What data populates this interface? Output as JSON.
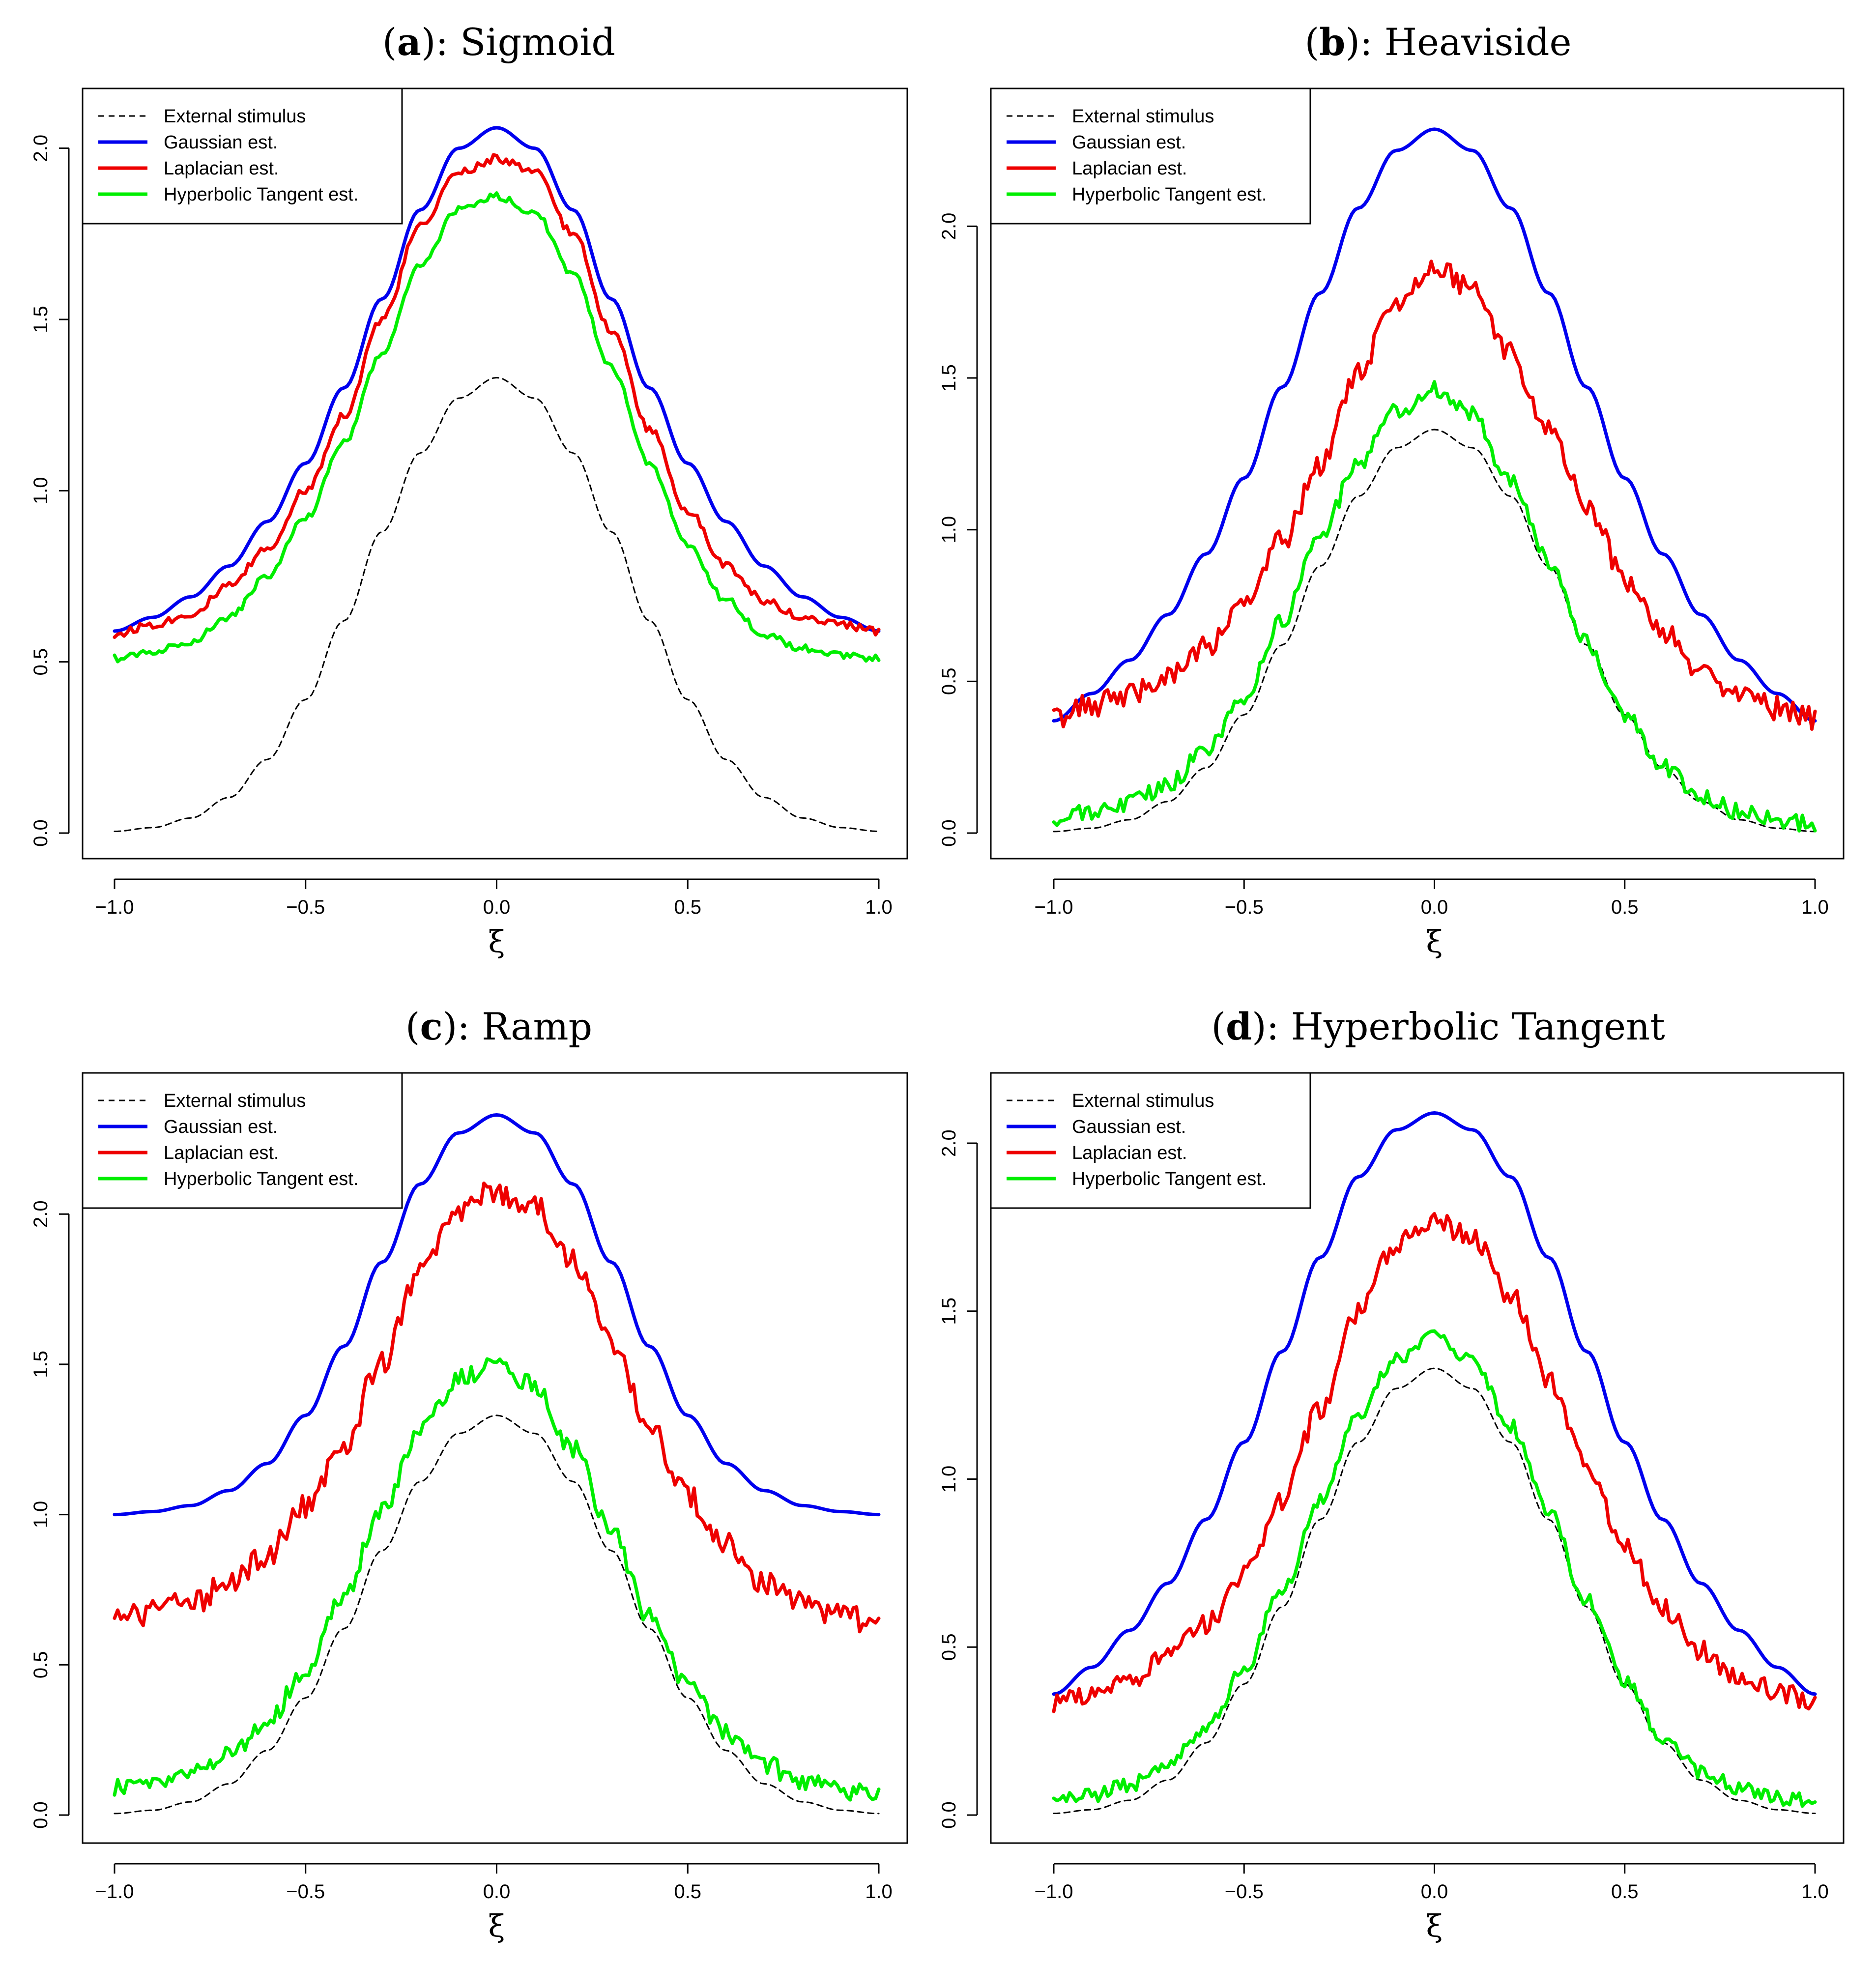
{
  "chart_data": [
    {
      "type": "line",
      "title": "Sigmoid",
      "label": "a",
      "xlabel": "ξ",
      "ylabel": "",
      "xlim": [
        -1.0,
        1.0
      ],
      "ylim": [
        0.0,
        2.1
      ],
      "xticks": [
        "-1.0",
        "-0.5",
        "0.0",
        "0.5",
        "1.0"
      ],
      "yticks": [
        "0.0",
        "0.5",
        "1.0",
        "1.5",
        "2.0"
      ],
      "legend": [
        "External stimulus",
        "Gaussian est.",
        "Laplacian est.",
        "Hyperbolic Tangent est."
      ],
      "legend_position": "top-left",
      "x": [
        -1.0,
        -0.9,
        -0.8,
        -0.7,
        -0.6,
        -0.5,
        -0.4,
        -0.3,
        -0.2,
        -0.1,
        0.0,
        0.1,
        0.2,
        0.3,
        0.4,
        0.5,
        0.6,
        0.7,
        0.8,
        0.9,
        1.0
      ],
      "series": [
        {
          "name": "External stimulus",
          "color": "#000000",
          "dash": true,
          "values": [
            0.005,
            0.016,
            0.044,
            0.104,
            0.215,
            0.39,
            0.62,
            0.88,
            1.11,
            1.27,
            1.33,
            1.27,
            1.11,
            0.88,
            0.62,
            0.39,
            0.215,
            0.104,
            0.044,
            0.016,
            0.005
          ]
        },
        {
          "name": "Gaussian est.",
          "color": "#0000ee",
          "values": [
            0.59,
            0.63,
            0.69,
            0.78,
            0.91,
            1.08,
            1.3,
            1.56,
            1.82,
            2.0,
            2.06,
            2.0,
            1.82,
            1.56,
            1.3,
            1.08,
            0.91,
            0.78,
            0.69,
            0.63,
            0.59
          ]
        },
        {
          "name": "Laplacian est.",
          "color": "#ee0000",
          "values": [
            0.58,
            0.61,
            0.64,
            0.72,
            0.83,
            1.0,
            1.22,
            1.5,
            1.77,
            1.93,
            1.97,
            1.93,
            1.75,
            1.47,
            1.18,
            0.94,
            0.78,
            0.68,
            0.63,
            0.61,
            0.59
          ]
        },
        {
          "name": "Hyperbolic Tangent est.",
          "color": "#00ee00",
          "values": [
            0.51,
            0.53,
            0.56,
            0.63,
            0.75,
            0.92,
            1.14,
            1.4,
            1.66,
            1.82,
            1.86,
            1.81,
            1.63,
            1.36,
            1.08,
            0.84,
            0.68,
            0.58,
            0.54,
            0.52,
            0.51
          ]
        }
      ]
    },
    {
      "type": "line",
      "title": "Heaviside",
      "label": "b",
      "xlabel": "ξ",
      "ylabel": "",
      "xlim": [
        -1.0,
        1.0
      ],
      "ylim": [
        0.0,
        2.37
      ],
      "xticks": [
        "-1.0",
        "-0.5",
        "0.0",
        "0.5",
        "1.0"
      ],
      "yticks": [
        "0.0",
        "0.5",
        "1.0",
        "1.5",
        "2.0"
      ],
      "legend": [
        "External stimulus",
        "Gaussian est.",
        "Laplacian est.",
        "Hyperbolic Tangent est."
      ],
      "legend_position": "top-left",
      "x": [
        -1.0,
        -0.9,
        -0.8,
        -0.7,
        -0.6,
        -0.5,
        -0.4,
        -0.3,
        -0.2,
        -0.1,
        0.0,
        0.1,
        0.2,
        0.3,
        0.4,
        0.5,
        0.6,
        0.7,
        0.8,
        0.9,
        1.0
      ],
      "series": [
        {
          "name": "External stimulus",
          "color": "#000000",
          "dash": true,
          "values": [
            0.005,
            0.016,
            0.044,
            0.104,
            0.215,
            0.39,
            0.62,
            0.88,
            1.11,
            1.27,
            1.33,
            1.27,
            1.11,
            0.88,
            0.62,
            0.39,
            0.215,
            0.104,
            0.044,
            0.016,
            0.005
          ]
        },
        {
          "name": "Gaussian est.",
          "color": "#0000ee",
          "values": [
            0.37,
            0.46,
            0.57,
            0.72,
            0.92,
            1.17,
            1.47,
            1.78,
            2.06,
            2.25,
            2.32,
            2.25,
            2.06,
            1.78,
            1.47,
            1.17,
            0.92,
            0.72,
            0.57,
            0.46,
            0.37
          ]
        },
        {
          "name": "Laplacian est.",
          "color": "#ee0000",
          "values": [
            0.38,
            0.42,
            0.46,
            0.52,
            0.61,
            0.75,
            0.96,
            1.22,
            1.52,
            1.76,
            1.86,
            1.8,
            1.58,
            1.33,
            1.08,
            0.84,
            0.66,
            0.53,
            0.46,
            0.41,
            0.38
          ]
        },
        {
          "name": "Hyperbolic Tangent est.",
          "color": "#00ee00",
          "values": [
            0.04,
            0.07,
            0.1,
            0.16,
            0.27,
            0.45,
            0.7,
            0.98,
            1.22,
            1.39,
            1.46,
            1.38,
            1.16,
            0.9,
            0.63,
            0.39,
            0.22,
            0.12,
            0.07,
            0.04,
            0.03
          ]
        }
      ]
    },
    {
      "type": "line",
      "title": "Ramp",
      "label": "c",
      "xlabel": "ξ",
      "ylabel": "",
      "xlim": [
        -1.0,
        1.0
      ],
      "ylim": [
        0.0,
        2.37
      ],
      "xticks": [
        "-1.0",
        "-0.5",
        "0.0",
        "0.5",
        "1.0"
      ],
      "yticks": [
        "0.0",
        "0.5",
        "1.0",
        "1.5",
        "2.0"
      ],
      "legend": [
        "External stimulus",
        "Gaussian est.",
        "Laplacian est.",
        "Hyperbolic Tangent est."
      ],
      "legend_position": "top-left",
      "x": [
        -1.0,
        -0.9,
        -0.8,
        -0.7,
        -0.6,
        -0.5,
        -0.4,
        -0.3,
        -0.2,
        -0.1,
        0.0,
        0.1,
        0.2,
        0.3,
        0.4,
        0.5,
        0.6,
        0.7,
        0.8,
        0.9,
        1.0
      ],
      "series": [
        {
          "name": "External stimulus",
          "color": "#000000",
          "dash": true,
          "values": [
            0.005,
            0.016,
            0.044,
            0.104,
            0.215,
            0.39,
            0.62,
            0.88,
            1.11,
            1.27,
            1.33,
            1.27,
            1.11,
            0.88,
            0.62,
            0.39,
            0.215,
            0.104,
            0.044,
            0.016,
            0.005
          ]
        },
        {
          "name": "Gaussian est.",
          "color": "#0000ee",
          "values": [
            1.0,
            1.01,
            1.03,
            1.08,
            1.17,
            1.33,
            1.56,
            1.84,
            2.1,
            2.27,
            2.33,
            2.27,
            2.1,
            1.84,
            1.56,
            1.33,
            1.17,
            1.08,
            1.03,
            1.01,
            1.0
          ]
        },
        {
          "name": "Laplacian est.",
          "color": "#ee0000",
          "values": [
            0.65,
            0.68,
            0.71,
            0.77,
            0.87,
            1.02,
            1.24,
            1.51,
            1.8,
            2.0,
            2.08,
            2.02,
            1.84,
            1.58,
            1.3,
            1.06,
            0.9,
            0.78,
            0.71,
            0.67,
            0.63
          ]
        },
        {
          "name": "Hyperbolic Tangent est.",
          "color": "#00ee00",
          "values": [
            0.09,
            0.11,
            0.14,
            0.2,
            0.31,
            0.48,
            0.73,
            1.02,
            1.28,
            1.45,
            1.5,
            1.43,
            1.22,
            0.94,
            0.66,
            0.43,
            0.27,
            0.17,
            0.11,
            0.08,
            0.07
          ]
        }
      ]
    },
    {
      "type": "line",
      "title": "Hyperbolic Tangent",
      "label": "d",
      "xlabel": "ξ",
      "ylabel": "",
      "xlim": [
        -1.0,
        1.0
      ],
      "ylim": [
        0.0,
        2.12
      ],
      "xticks": [
        "-1.0",
        "-0.5",
        "0.0",
        "0.5",
        "1.0"
      ],
      "yticks": [
        "0.0",
        "0.5",
        "1.0",
        "1.5",
        "2.0"
      ],
      "legend": [
        "External stimulus",
        "Gaussian est.",
        "Laplacian est.",
        "Hyperbolic Tangent est."
      ],
      "legend_position": "top-left",
      "x": [
        -1.0,
        -0.9,
        -0.8,
        -0.7,
        -0.6,
        -0.5,
        -0.4,
        -0.3,
        -0.2,
        -0.1,
        0.0,
        0.1,
        0.2,
        0.3,
        0.4,
        0.5,
        0.6,
        0.7,
        0.8,
        0.9,
        1.0
      ],
      "series": [
        {
          "name": "External stimulus",
          "color": "#000000",
          "dash": true,
          "values": [
            0.005,
            0.016,
            0.044,
            0.104,
            0.215,
            0.39,
            0.62,
            0.88,
            1.11,
            1.27,
            1.33,
            1.27,
            1.11,
            0.88,
            0.62,
            0.39,
            0.215,
            0.104,
            0.044,
            0.016,
            0.005
          ]
        },
        {
          "name": "Gaussian est.",
          "color": "#0000ee",
          "values": [
            0.36,
            0.44,
            0.55,
            0.69,
            0.88,
            1.11,
            1.38,
            1.66,
            1.9,
            2.04,
            2.09,
            2.04,
            1.9,
            1.66,
            1.38,
            1.11,
            0.88,
            0.69,
            0.55,
            0.44,
            0.36
          ]
        },
        {
          "name": "Laplacian est.",
          "color": "#ee0000",
          "values": [
            0.33,
            0.36,
            0.4,
            0.47,
            0.57,
            0.72,
            0.94,
            1.21,
            1.5,
            1.7,
            1.77,
            1.72,
            1.55,
            1.3,
            1.04,
            0.8,
            0.62,
            0.49,
            0.41,
            0.37,
            0.34
          ]
        },
        {
          "name": "Hyperbolic Tangent est.",
          "color": "#00ee00",
          "values": [
            0.04,
            0.06,
            0.09,
            0.15,
            0.26,
            0.43,
            0.67,
            0.94,
            1.19,
            1.36,
            1.42,
            1.36,
            1.16,
            0.9,
            0.64,
            0.4,
            0.23,
            0.13,
            0.08,
            0.05,
            0.04
          ]
        }
      ]
    }
  ]
}
